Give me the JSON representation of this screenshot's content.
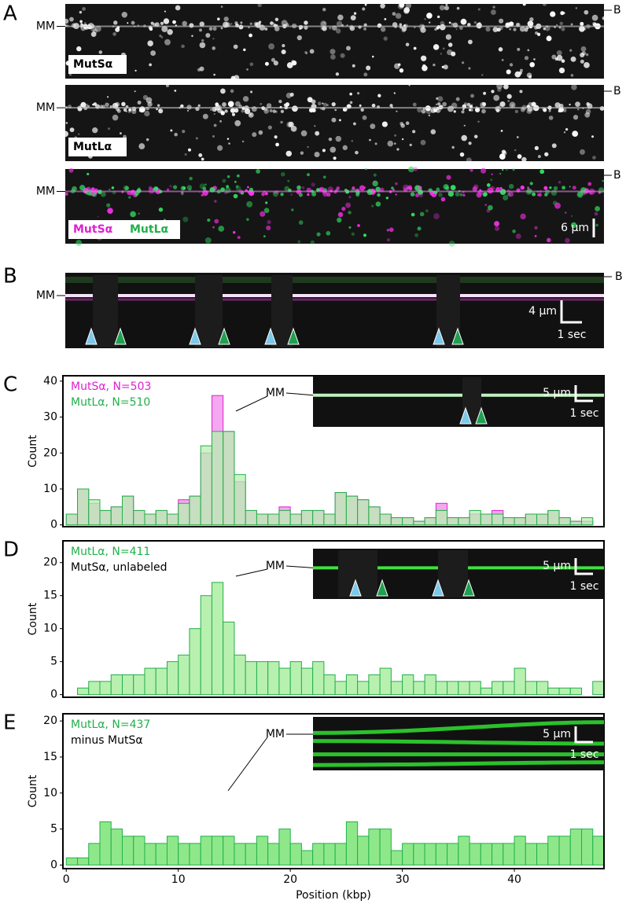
{
  "panel_a": {
    "letter": "A",
    "images": [
      {
        "mm": "MM",
        "b": "B",
        "labels": [
          "MutSα"
        ]
      },
      {
        "mm": "MM",
        "b": "B",
        "labels": [
          "MutLα"
        ]
      },
      {
        "mm": "MM",
        "b": "B",
        "labels": [
          "MutSα",
          "MutLα"
        ]
      }
    ],
    "scale": "6 μm"
  },
  "panel_b": {
    "letter": "B",
    "mm": "MM",
    "b": "B",
    "scale_distance": "4 μm",
    "scale_time": "1 sec"
  },
  "chart_data": [
    {
      "type": "histogram",
      "letter": "C",
      "inset_mm": "MM",
      "inset_distance": "5 μm",
      "inset_time": "1 sec",
      "ylabel": "Count",
      "bins": [
        0,
        1,
        2,
        3,
        4,
        5,
        6,
        7,
        8,
        9,
        10,
        11,
        12,
        13,
        14,
        15,
        16,
        17,
        18,
        19,
        20,
        21,
        22,
        23,
        24,
        25,
        26,
        27,
        28,
        29,
        30,
        31,
        32,
        33,
        34,
        35,
        36,
        37,
        38,
        39,
        40,
        41,
        42,
        43,
        44,
        45,
        46,
        47,
        48
      ],
      "series": [
        {
          "name": "MutSα, N=503",
          "color": "#e020d0",
          "fill": "#f4a8f0",
          "values": [
            3,
            10,
            6,
            4,
            5,
            8,
            4,
            3,
            4,
            3,
            7,
            8,
            20,
            36,
            26,
            12,
            4,
            3,
            3,
            5,
            3,
            4,
            4,
            3,
            9,
            8,
            7,
            5,
            3,
            2,
            2,
            1,
            2,
            6,
            2,
            2,
            3,
            3,
            4,
            2,
            2,
            3,
            3,
            4,
            2,
            1,
            1,
            0
          ]
        },
        {
          "name": "MutLα, N=510",
          "color": "#22b04a",
          "fill": "#b8f0b0",
          "values": [
            3,
            10,
            7,
            4,
            5,
            8,
            4,
            3,
            4,
            3,
            6,
            8,
            22,
            26,
            26,
            14,
            4,
            3,
            3,
            4,
            3,
            4,
            4,
            3,
            9,
            8,
            7,
            5,
            3,
            2,
            2,
            1,
            2,
            4,
            2,
            2,
            4,
            3,
            3,
            2,
            2,
            3,
            3,
            4,
            2,
            1,
            2,
            0
          ]
        }
      ],
      "xlim": [
        -0.3,
        48
      ],
      "ylim": [
        -0.5,
        41.5
      ],
      "yticks": [
        0,
        10,
        20,
        30,
        40
      ]
    },
    {
      "type": "histogram",
      "letter": "D",
      "inset_mm": "MM",
      "inset_distance": "5 μm",
      "inset_time": "1 sec",
      "annotation": "MutSα, unlabeled",
      "ylabel": "Count",
      "bins": [
        0,
        1,
        2,
        3,
        4,
        5,
        6,
        7,
        8,
        9,
        10,
        11,
        12,
        13,
        14,
        15,
        16,
        17,
        18,
        19,
        20,
        21,
        22,
        23,
        24,
        25,
        26,
        27,
        28,
        29,
        30,
        31,
        32,
        33,
        34,
        35,
        36,
        37,
        38,
        39,
        40,
        41,
        42,
        43,
        44,
        45,
        46,
        47,
        48
      ],
      "series": [
        {
          "name": "MutLα, N=411",
          "color": "#22b04a",
          "fill": "#b8f0b0",
          "values": [
            0,
            1,
            2,
            2,
            3,
            3,
            3,
            4,
            4,
            5,
            6,
            10,
            15,
            17,
            11,
            6,
            5,
            5,
            5,
            4,
            5,
            4,
            5,
            3,
            2,
            3,
            2,
            3,
            4,
            2,
            3,
            2,
            3,
            2,
            2,
            2,
            2,
            1,
            2,
            2,
            4,
            2,
            2,
            1,
            1,
            1,
            0,
            2
          ]
        }
      ],
      "xlim": [
        -0.3,
        48
      ],
      "ylim": [
        -0.4,
        23.3
      ],
      "yticks": [
        0,
        5,
        10,
        15,
        20
      ]
    },
    {
      "type": "histogram",
      "letter": "E",
      "inset_mm": "MM",
      "inset_distance": "5 μm",
      "inset_time": "1 sec",
      "annotation": "minus MutSα",
      "ylabel": "Count",
      "xlabel": "Position (kbp)",
      "bins": [
        0,
        1,
        2,
        3,
        4,
        5,
        6,
        7,
        8,
        9,
        10,
        11,
        12,
        13,
        14,
        15,
        16,
        17,
        18,
        19,
        20,
        21,
        22,
        23,
        24,
        25,
        26,
        27,
        28,
        29,
        30,
        31,
        32,
        33,
        34,
        35,
        36,
        37,
        38,
        39,
        40,
        41,
        42,
        43,
        44,
        45,
        46,
        47,
        48
      ],
      "series": [
        {
          "name": "MutLα, N=437",
          "color": "#22b04a",
          "fill": "#8ee88a",
          "values": [
            1,
            1,
            3,
            6,
            5,
            4,
            4,
            3,
            3,
            4,
            3,
            3,
            4,
            4,
            4,
            3,
            3,
            4,
            3,
            5,
            3,
            2,
            3,
            3,
            3,
            6,
            4,
            5,
            5,
            2,
            3,
            3,
            3,
            3,
            3,
            4,
            3,
            3,
            3,
            3,
            4,
            3,
            3,
            4,
            4,
            5,
            5,
            4
          ]
        }
      ],
      "xlim": [
        -0.3,
        48
      ],
      "ylim": [
        -0.5,
        21
      ],
      "yticks": [
        0,
        5,
        10,
        15,
        20
      ],
      "xticks": [
        0,
        10,
        20,
        30,
        40
      ]
    }
  ]
}
